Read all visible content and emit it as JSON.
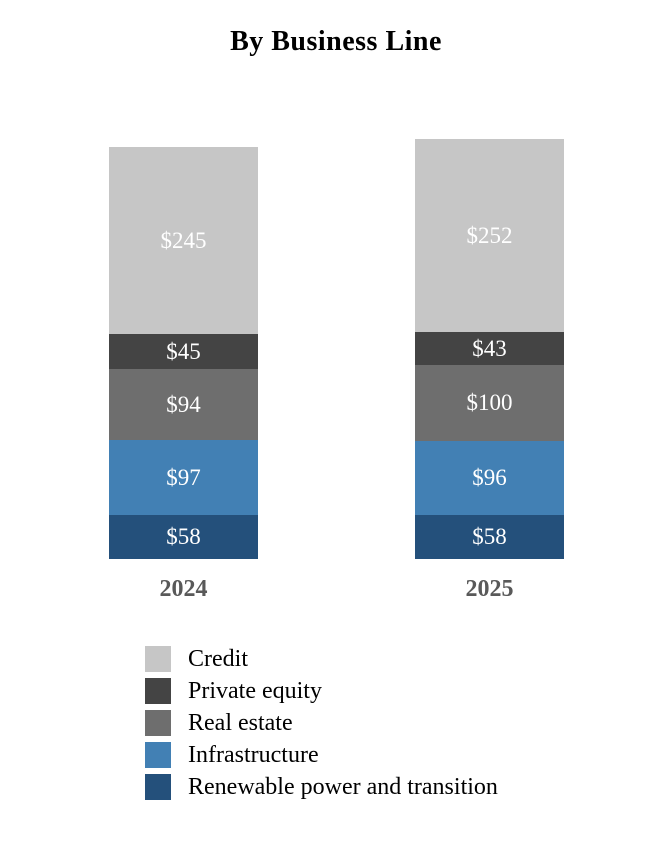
{
  "chart_data": {
    "type": "bar",
    "stacked": true,
    "title": "By Business Line",
    "categories": [
      "2024",
      "2025"
    ],
    "series": [
      {
        "name": "Credit",
        "color": "#c6c6c6",
        "values": [
          245,
          252
        ]
      },
      {
        "name": "Private equity",
        "color": "#444444",
        "values": [
          45,
          43
        ]
      },
      {
        "name": "Real estate",
        "color": "#6e6e6e",
        "values": [
          94,
          100
        ]
      },
      {
        "name": "Infrastructure",
        "color": "#4280b4",
        "values": [
          97,
          96
        ]
      },
      {
        "name": "Renewable power and transition",
        "color": "#24507b",
        "values": [
          58,
          58
        ]
      }
    ],
    "totals": [
      539,
      549
    ],
    "value_prefix": "$",
    "value_label_color": "#ffffff",
    "axis_label_color": "#595959",
    "legend_position": "bottom-left",
    "grid": false,
    "xlabel": "",
    "ylabel": ""
  }
}
